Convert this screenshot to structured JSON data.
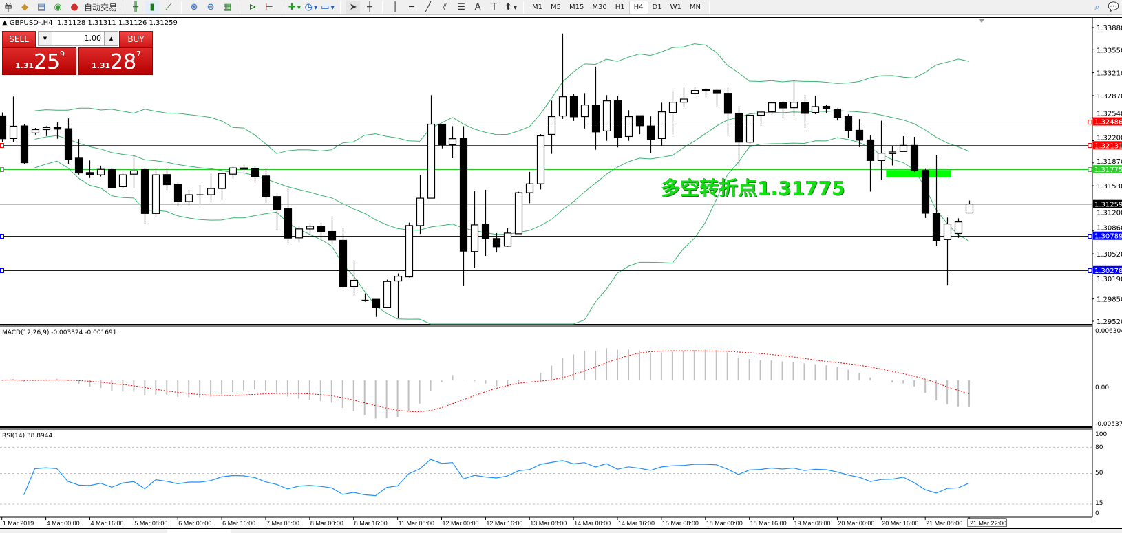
{
  "toolbar": {
    "left_char": "单",
    "icons": [
      "gold-bars-icon",
      "document-icon",
      "signal-icon",
      "expert-advisor-icon"
    ],
    "autotrade_label": "自动交易",
    "chart_icons": [
      "bar-chart-icon",
      "candlestick-icon",
      "line-chart-icon",
      "zoom-in-icon",
      "zoom-out-icon",
      "tile-windows-icon",
      "auto-scroll-icon",
      "chart-shift-icon",
      "add-indicator-icon",
      "clock-icon",
      "templates-icon",
      "cursor-icon",
      "crosshair-icon",
      "vertical-line-icon",
      "horizontal-line-icon",
      "trendline-icon",
      "equidistant-channel-icon",
      "fibonacci-icon",
      "text-icon",
      "text-label-icon",
      "arrows-icon"
    ],
    "timeframes": [
      "M1",
      "M5",
      "M15",
      "M30",
      "H1",
      "H4",
      "D1",
      "W1",
      "MN"
    ],
    "active_timeframe": "H4"
  },
  "symbol_header": "GBPUSD-,H4  1.31128 1.31311 1.31126 1.31259",
  "trade_panel": {
    "sell_label": "SELL",
    "buy_label": "BUY",
    "lot": "1.00",
    "sell_price": {
      "prefix": "1.31",
      "big": "25",
      "sup": "9"
    },
    "buy_price": {
      "prefix": "1.31",
      "big": "28",
      "sup": "7"
    }
  },
  "annotation": "多空转折点1.31775",
  "colors": {
    "bull": "#ffffff",
    "bear": "#000000",
    "bands": "#3cb371",
    "resistance": "#ff0000",
    "pivot": "#22cc22",
    "support": "#0000ff",
    "bid": "#c0c0c0",
    "macd_hist": "#c0c0c0",
    "macd_signal": "#ff0000",
    "rsi": "#1e90ff",
    "pivot_bar": "#00ff00"
  },
  "price_axis": {
    "labels": [
      "1.33880",
      "1.33550",
      "1.33210",
      "1.32870",
      "1.32540",
      "1.32200",
      "1.31870",
      "1.31530",
      "1.31200",
      "1.30860",
      "1.30520",
      "1.30190",
      "1.29850",
      "1.29520"
    ]
  },
  "hlines": [
    {
      "price": "1.32486",
      "kind": "resistance"
    },
    {
      "price": "1.32131",
      "kind": "resistance"
    },
    {
      "price": "1.31775",
      "kind": "pivot"
    },
    {
      "price": "1.31259",
      "kind": "bid"
    },
    {
      "price": "1.30789",
      "kind": "support"
    },
    {
      "price": "1.30278",
      "kind": "support"
    }
  ],
  "macd": {
    "header": "MACD(12,26,9) -0.003324 -0.001691",
    "axis": [
      "0.006304",
      "0.00",
      "-0.005378"
    ]
  },
  "rsi": {
    "header": "RSI(14) 38.8944",
    "axis": [
      "100",
      "80",
      "50",
      "15",
      "0"
    ],
    "levels": [
      80,
      50,
      15
    ]
  },
  "time_labels": [
    "1 Mar 2019",
    "4 Mar 00:00",
    "4 Mar 16:00",
    "5 Mar 08:00",
    "6 Mar 00:00",
    "6 Mar 16:00",
    "7 Mar 08:00",
    "8 Mar 00:00",
    "8 Mar 16:00",
    "11 Mar 08:00",
    "12 Mar 00:00",
    "12 Mar 16:00",
    "13 Mar 08:00",
    "14 Mar 00:00",
    "14 Mar 16:00",
    "15 Mar 08:00",
    "18 Mar 00:00",
    "18 Mar 16:00",
    "19 Mar 08:00",
    "20 Mar 00:00",
    "20 Mar 16:00",
    "21 Mar 08:00",
    "21 Mar 22:00"
  ],
  "chart_data": {
    "type": "candlestick",
    "symbol": "GBPUSD-",
    "timeframe": "H4",
    "ylim": [
      1.2952,
      1.3388
    ],
    "indicators": [
      "Bollinger Bands",
      "MACD(12,26,9)",
      "RSI(14)"
    ],
    "ohlc_order": [
      "open",
      "high",
      "low",
      "close"
    ],
    "candles": [
      [
        1.32568,
        1.32619,
        1.32178,
        1.32229
      ],
      [
        1.32232,
        1.32856,
        1.32178,
        1.32415
      ],
      [
        1.32419,
        1.32449,
        1.31849,
        1.31873
      ],
      [
        1.32314,
        1.32388,
        1.3229,
        1.32364
      ],
      [
        1.32364,
        1.32415,
        1.32269,
        1.32395
      ],
      [
        1.32395,
        1.32481,
        1.32229,
        1.32371
      ],
      [
        1.32378,
        1.3253,
        1.31856,
        1.31924
      ],
      [
        1.31941,
        1.32225,
        1.31697,
        1.3172
      ],
      [
        1.31727,
        1.31907,
        1.31646,
        1.31693
      ],
      [
        1.31693,
        1.31829,
        1.31669,
        1.31774
      ],
      [
        1.31771,
        1.31788,
        1.31507,
        1.31507
      ],
      [
        1.31517,
        1.31727,
        1.31486,
        1.31693
      ],
      [
        1.31703,
        1.31981,
        1.31497,
        1.31754
      ],
      [
        1.31771,
        1.31788,
        1.30968,
        1.3112
      ],
      [
        1.3112,
        1.31788,
        1.31059,
        1.31693
      ],
      [
        1.31697,
        1.31788,
        1.31466,
        1.31547
      ],
      [
        1.31554,
        1.31585,
        1.31232,
        1.31293
      ],
      [
        1.31296,
        1.31473,
        1.31242,
        1.31398
      ],
      [
        1.31398,
        1.31544,
        1.31263,
        1.31398
      ],
      [
        1.31398,
        1.31727,
        1.31283,
        1.3149
      ],
      [
        1.3149,
        1.31727,
        1.31314,
        1.31713
      ],
      [
        1.31703,
        1.31829,
        1.31639,
        1.31795
      ],
      [
        1.31795,
        1.31839,
        1.31737,
        1.31778
      ],
      [
        1.31788,
        1.31815,
        1.31578,
        1.31669
      ],
      [
        1.31676,
        1.31788,
        1.31273,
        1.31364
      ],
      [
        1.31371,
        1.31402,
        1.30876,
        1.31171
      ],
      [
        1.31188,
        1.31503,
        1.30673,
        1.30754
      ],
      [
        1.30757,
        1.30924,
        1.30693,
        1.3089
      ],
      [
        1.30889,
        1.30974,
        1.30805,
        1.3093
      ],
      [
        1.3093,
        1.30984,
        1.30737,
        1.30845
      ],
      [
        1.30852,
        1.31076,
        1.30662,
        1.30727
      ],
      [
        1.3072,
        1.30903,
        1.30015,
        1.30032
      ],
      [
        1.30035,
        1.30425,
        1.29889,
        1.30127
      ],
      [
        1.29832,
        1.29933,
        1.29811,
        1.29832
      ],
      [
        1.29845,
        1.29845,
        1.29584,
        1.2972
      ],
      [
        1.2972,
        1.30137,
        1.2972,
        1.3011
      ],
      [
        1.30117,
        1.30229,
        1.29567,
        1.30188
      ],
      [
        1.30178,
        1.30984,
        1.30168,
        1.3094
      ],
      [
        1.3094,
        1.31696,
        1.30815,
        1.31347
      ],
      [
        1.31347,
        1.32876,
        1.31347,
        1.32445
      ],
      [
        1.32445,
        1.32445,
        1.32086,
        1.32137
      ],
      [
        1.3214,
        1.32415,
        1.3194,
        1.32229
      ],
      [
        1.32232,
        1.32415,
        1.30042,
        1.3056
      ],
      [
        1.30554,
        1.31452,
        1.30306,
        1.3095
      ],
      [
        1.30964,
        1.31472,
        1.30489,
        1.30747
      ],
      [
        1.30747,
        1.30828,
        1.3054,
        1.30625
      ],
      [
        1.30635,
        1.309,
        1.30625,
        1.30828
      ],
      [
        1.30818,
        1.31442,
        1.30818,
        1.31428
      ],
      [
        1.31428,
        1.31737,
        1.31272,
        1.3156
      ],
      [
        1.3156,
        1.32296,
        1.31476,
        1.32272
      ],
      [
        1.32293,
        1.32794,
        1.32005,
        1.32557
      ],
      [
        1.32567,
        1.33791,
        1.32523,
        1.32852
      ],
      [
        1.32862,
        1.32893,
        1.32493,
        1.32554
      ],
      [
        1.32557,
        1.32906,
        1.32381,
        1.3273
      ],
      [
        1.3273,
        1.333,
        1.32066,
        1.3233
      ],
      [
        1.32344,
        1.32876,
        1.32198,
        1.32791
      ],
      [
        1.32791,
        1.32866,
        1.321,
        1.32249
      ],
      [
        1.32262,
        1.32652,
        1.32198,
        1.32557
      ],
      [
        1.32571,
        1.32571,
        1.32296,
        1.32422
      ],
      [
        1.32418,
        1.32561,
        1.32015,
        1.32218
      ],
      [
        1.32232,
        1.32764,
        1.32117,
        1.32628
      ],
      [
        1.32618,
        1.32927,
        1.32279,
        1.32771
      ],
      [
        1.32771,
        1.32984,
        1.32706,
        1.32818
      ],
      [
        1.32903,
        1.32998,
        1.32879,
        1.32944
      ],
      [
        1.32957,
        1.32981,
        1.32828,
        1.32944
      ],
      [
        1.32947,
        1.32974,
        1.32696,
        1.3291
      ],
      [
        1.32903,
        1.32984,
        1.32272,
        1.32605
      ],
      [
        1.32608,
        1.3271,
        1.31832,
        1.32178
      ],
      [
        1.32178,
        1.32585,
        1.3215,
        1.32578
      ],
      [
        1.32578,
        1.32645,
        1.32422,
        1.32625
      ],
      [
        1.32628,
        1.32761,
        1.32585,
        1.32761
      ],
      [
        1.32761,
        1.32788,
        1.32544,
        1.32686
      ],
      [
        1.32689,
        1.331,
        1.32564,
        1.32771
      ],
      [
        1.32761,
        1.32883,
        1.32391,
        1.32605
      ],
      [
        1.32618,
        1.32866,
        1.32594,
        1.32706
      ],
      [
        1.3271,
        1.32737,
        1.32612,
        1.32676
      ],
      [
        1.32669,
        1.32679,
        1.325,
        1.32544
      ],
      [
        1.32561,
        1.32591,
        1.32245,
        1.3235
      ],
      [
        1.32354,
        1.3252,
        1.32106,
        1.32208
      ],
      [
        1.32211,
        1.32276,
        1.31445,
        1.31906
      ],
      [
        1.31906,
        1.32496,
        1.31618,
        1.32015
      ],
      [
        1.32008,
        1.32113,
        1.31832,
        1.32032
      ],
      [
        1.32039,
        1.32266,
        1.32039,
        1.3213
      ],
      [
        1.3213,
        1.32256,
        1.3174,
        1.3176
      ],
      [
        1.3176,
        1.3178,
        1.31053,
        1.31124
      ],
      [
        1.3112,
        1.31989,
        1.30637,
        1.30718
      ],
      [
        1.30732,
        1.31059,
        1.30049,
        1.30964
      ],
      [
        1.30822,
        1.31048,
        1.30758,
        1.30994
      ],
      [
        1.31128,
        1.31311,
        1.31126,
        1.31259
      ]
    ],
    "pivot_zone": {
      "price": 1.31775,
      "from_bar": 80,
      "to_bar": 86
    }
  }
}
